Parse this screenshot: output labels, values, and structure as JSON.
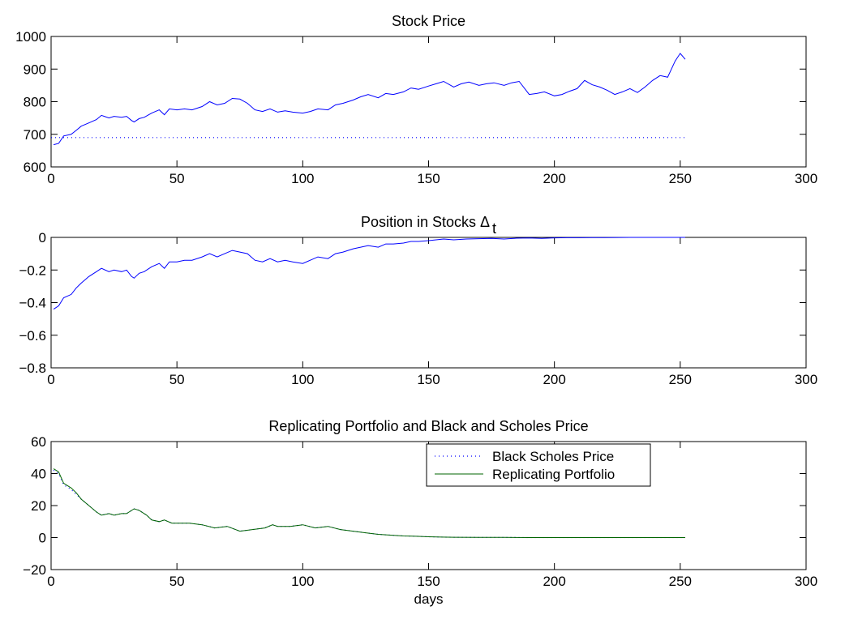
{
  "chart_data": [
    {
      "type": "line",
      "title": "Stock Price",
      "xlabel": "",
      "ylabel": "",
      "xlim": [
        0,
        300
      ],
      "ylim": [
        600,
        1000
      ],
      "xticks": [
        "0",
        "50",
        "100",
        "150",
        "200",
        "250",
        "300"
      ],
      "yticks": [
        "600",
        "700",
        "800",
        "900",
        "1000"
      ],
      "grid": false,
      "series": [
        {
          "style": "solid",
          "color": "#0000ff",
          "x": [
            1,
            3,
            5,
            8,
            10,
            12,
            15,
            18,
            20,
            23,
            25,
            28,
            30,
            32,
            33,
            35,
            37,
            40,
            43,
            45,
            47,
            50,
            53,
            56,
            60,
            63,
            66,
            69,
            72,
            75,
            78,
            81,
            84,
            87,
            90,
            93,
            96,
            100,
            103,
            106,
            110,
            113,
            116,
            120,
            123,
            126,
            130,
            133,
            136,
            140,
            143,
            146,
            150,
            153,
            156,
            160,
            163,
            166,
            170,
            173,
            176,
            180,
            183,
            186,
            190,
            193,
            196,
            200,
            203,
            206,
            209,
            212,
            215,
            218,
            221,
            224,
            227,
            230,
            233,
            236,
            239,
            242,
            245,
            248,
            250,
            252
          ],
          "y": [
            668,
            672,
            695,
            700,
            712,
            725,
            735,
            745,
            758,
            750,
            755,
            752,
            755,
            742,
            738,
            748,
            752,
            765,
            775,
            760,
            778,
            775,
            778,
            775,
            785,
            800,
            790,
            795,
            810,
            808,
            795,
            775,
            770,
            778,
            768,
            772,
            768,
            765,
            770,
            778,
            775,
            790,
            795,
            805,
            815,
            822,
            812,
            825,
            822,
            830,
            842,
            838,
            848,
            855,
            862,
            845,
            855,
            860,
            850,
            855,
            858,
            850,
            858,
            862,
            822,
            825,
            830,
            818,
            822,
            832,
            840,
            865,
            852,
            845,
            835,
            822,
            830,
            840,
            828,
            845,
            865,
            880,
            875,
            925,
            948,
            930
          ]
        },
        {
          "style": "dotted",
          "color": "#0000ff",
          "x": [
            0,
            252
          ],
          "y": [
            690,
            690
          ]
        }
      ]
    },
    {
      "type": "line",
      "title": "Position in Stocks Δ",
      "title_subscript": "t",
      "xlabel": "",
      "ylabel": "",
      "xlim": [
        0,
        300
      ],
      "ylim": [
        -0.8,
        0
      ],
      "xticks": [
        "0",
        "50",
        "100",
        "150",
        "200",
        "250",
        "300"
      ],
      "yticks": [
        "−0.8",
        "−0.6",
        "−0.4",
        "−0.2",
        "0"
      ],
      "grid": false,
      "series": [
        {
          "style": "solid",
          "color": "#0000ff",
          "x": [
            1,
            3,
            5,
            8,
            10,
            12,
            15,
            18,
            20,
            23,
            25,
            28,
            30,
            32,
            33,
            35,
            37,
            40,
            43,
            45,
            47,
            50,
            53,
            56,
            60,
            63,
            66,
            69,
            72,
            75,
            78,
            81,
            84,
            87,
            90,
            93,
            96,
            100,
            103,
            106,
            110,
            113,
            116,
            120,
            123,
            126,
            130,
            133,
            136,
            140,
            143,
            146,
            150,
            153,
            156,
            160,
            165,
            170,
            175,
            180,
            185,
            190,
            195,
            200,
            205,
            210,
            215,
            220,
            230,
            240,
            252
          ],
          "y": [
            -0.44,
            -0.42,
            -0.37,
            -0.35,
            -0.31,
            -0.28,
            -0.24,
            -0.21,
            -0.19,
            -0.21,
            -0.2,
            -0.21,
            -0.2,
            -0.24,
            -0.25,
            -0.22,
            -0.21,
            -0.18,
            -0.16,
            -0.19,
            -0.15,
            -0.15,
            -0.14,
            -0.14,
            -0.12,
            -0.1,
            -0.12,
            -0.1,
            -0.08,
            -0.09,
            -0.1,
            -0.14,
            -0.15,
            -0.13,
            -0.15,
            -0.14,
            -0.15,
            -0.16,
            -0.14,
            -0.12,
            -0.13,
            -0.1,
            -0.09,
            -0.07,
            -0.06,
            -0.05,
            -0.06,
            -0.04,
            -0.04,
            -0.035,
            -0.025,
            -0.025,
            -0.02,
            -0.015,
            -0.01,
            -0.015,
            -0.01,
            -0.008,
            -0.006,
            -0.01,
            -0.005,
            -0.004,
            -0.006,
            -0.003,
            -0.002,
            -0.002,
            -0.001,
            -0.001,
            0,
            0,
            0
          ]
        }
      ]
    },
    {
      "type": "line",
      "title": "Replicating Portfolio and Black and Scholes Price",
      "xlabel": "days",
      "ylabel": "",
      "xlim": [
        0,
        300
      ],
      "ylim": [
        -20,
        60
      ],
      "xticks": [
        "0",
        "50",
        "100",
        "150",
        "200",
        "250",
        "300"
      ],
      "yticks": [
        "−20",
        "0",
        "20",
        "40",
        "60"
      ],
      "grid": false,
      "legend": "top-right",
      "series": [
        {
          "name": "Black Scholes Price",
          "style": "dotted",
          "color": "#0000ff",
          "x": [
            1,
            3,
            5,
            8,
            10,
            12,
            15,
            18,
            20,
            23,
            25,
            28,
            30,
            33,
            35,
            38,
            40,
            43,
            45,
            48,
            50,
            55,
            60,
            65,
            70,
            75,
            80,
            85,
            88,
            90,
            95,
            100,
            105,
            110,
            115,
            120,
            125,
            130,
            135,
            140,
            145,
            150,
            155,
            160,
            170,
            180,
            190,
            200,
            210,
            220,
            230,
            240,
            252
          ],
          "y": [
            42,
            40,
            33,
            30,
            27,
            24,
            20,
            16,
            14,
            15,
            14,
            15,
            15,
            18,
            17,
            14,
            11,
            10,
            11,
            9,
            9,
            9,
            8,
            6,
            7,
            4,
            5,
            6,
            8,
            7,
            7,
            8,
            6,
            7,
            5,
            4,
            3,
            2,
            1.5,
            1,
            0.8,
            0.5,
            0.3,
            0.2,
            0.1,
            0.1,
            0,
            0,
            0,
            0,
            0,
            0,
            0
          ]
        },
        {
          "name": "Replicating Portfolio",
          "style": "solid",
          "color": "#006400",
          "x": [
            1,
            3,
            5,
            8,
            10,
            12,
            15,
            18,
            20,
            23,
            25,
            28,
            30,
            33,
            35,
            38,
            40,
            43,
            45,
            48,
            50,
            55,
            60,
            65,
            70,
            75,
            80,
            85,
            88,
            90,
            95,
            100,
            105,
            110,
            115,
            120,
            125,
            130,
            135,
            140,
            145,
            150,
            155,
            160,
            170,
            180,
            190,
            200,
            210,
            220,
            230,
            240,
            252
          ],
          "y": [
            43,
            41,
            34,
            31,
            28,
            24,
            20,
            16,
            14,
            15,
            14,
            15,
            15,
            18,
            17,
            14,
            11,
            10,
            11,
            9,
            9,
            9,
            8,
            6,
            7,
            4,
            5,
            6,
            8,
            7,
            7,
            8,
            6,
            7,
            5,
            4,
            3,
            2,
            1.5,
            1,
            0.8,
            0.5,
            0.3,
            0.2,
            0.1,
            0.1,
            0,
            0,
            0,
            0,
            0,
            0,
            0
          ]
        }
      ]
    }
  ]
}
